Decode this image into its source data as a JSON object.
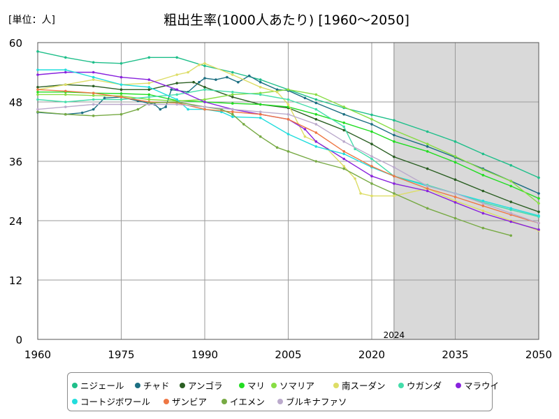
{
  "header": {
    "unit": "[単位：人]",
    "title": "粗出生率(1000人あたり) [1960〜2050]"
  },
  "chart_data": {
    "type": "line",
    "title": "粗出生率(1000人あたり) [1960〜2050]",
    "ylabel": "[単位：人]",
    "xlabel": "",
    "xlim": [
      1960,
      2050
    ],
    "ylim": [
      0,
      60
    ],
    "x_ticks": [
      1960,
      1975,
      1990,
      2005,
      2020,
      2035,
      2050
    ],
    "y_ticks": [
      0,
      12,
      24,
      36,
      48,
      60
    ],
    "grid": true,
    "legend_position": "bottom",
    "shaded_region": {
      "from": 2024,
      "to": 2050,
      "label": "2024",
      "color": "#d9d9d9"
    },
    "series": [
      {
        "name": "ニジェール",
        "color": "#1fbf8a",
        "points": [
          [
            1960,
            58.2
          ],
          [
            1965,
            57.0
          ],
          [
            1970,
            56.0
          ],
          [
            1975,
            55.8
          ],
          [
            1980,
            57.0
          ],
          [
            1985,
            57.0
          ],
          [
            1990,
            55.3
          ],
          [
            1995,
            54.0
          ],
          [
            2000,
            52.5
          ],
          [
            2005,
            50.5
          ],
          [
            2010,
            48.5
          ],
          [
            2015,
            46.8
          ],
          [
            2020,
            45.4
          ],
          [
            2024,
            44.3
          ],
          [
            2030,
            42.0
          ],
          [
            2035,
            40.0
          ],
          [
            2040,
            37.5
          ],
          [
            2045,
            35.2
          ],
          [
            2050,
            32.7
          ]
        ]
      },
      {
        "name": "チャド",
        "color": "#1c6f82",
        "points": [
          [
            1960,
            45.9
          ],
          [
            1965,
            45.5
          ],
          [
            1968,
            45.8
          ],
          [
            1970,
            46.5
          ],
          [
            1972,
            48.8
          ],
          [
            1975,
            49.0
          ],
          [
            1978,
            48.2
          ],
          [
            1981,
            47.5
          ],
          [
            1982,
            46.5
          ],
          [
            1983,
            47.0
          ],
          [
            1984,
            50.5
          ],
          [
            1987,
            50.0
          ],
          [
            1989,
            52.0
          ],
          [
            1990,
            52.8
          ],
          [
            1992,
            52.5
          ],
          [
            1994,
            53.0
          ],
          [
            1996,
            52.0
          ],
          [
            1998,
            53.3
          ],
          [
            2000,
            52.0
          ],
          [
            2003,
            50.5
          ],
          [
            2005,
            50.3
          ],
          [
            2008,
            48.8
          ],
          [
            2010,
            47.8
          ],
          [
            2015,
            45.5
          ],
          [
            2020,
            43.5
          ],
          [
            2024,
            41.3
          ],
          [
            2030,
            39.0
          ],
          [
            2035,
            36.8
          ],
          [
            2040,
            34.5
          ],
          [
            2045,
            32.0
          ],
          [
            2050,
            29.5
          ]
        ]
      },
      {
        "name": "アンゴラ",
        "color": "#2a5e22",
        "points": [
          [
            1960,
            51.0
          ],
          [
            1965,
            51.5
          ],
          [
            1970,
            51.2
          ],
          [
            1975,
            50.5
          ],
          [
            1980,
            50.5
          ],
          [
            1985,
            51.8
          ],
          [
            1988,
            52.0
          ],
          [
            1990,
            51.0
          ],
          [
            1995,
            49.0
          ],
          [
            2000,
            47.5
          ],
          [
            2005,
            46.8
          ],
          [
            2010,
            44.5
          ],
          [
            2015,
            42.3
          ],
          [
            2020,
            39.5
          ],
          [
            2024,
            36.9
          ],
          [
            2030,
            34.5
          ],
          [
            2035,
            32.3
          ],
          [
            2040,
            30.0
          ],
          [
            2045,
            27.8
          ],
          [
            2050,
            25.8
          ]
        ]
      },
      {
        "name": "マリ",
        "color": "#22dd22",
        "points": [
          [
            1960,
            50.0
          ],
          [
            1965,
            50.0
          ],
          [
            1970,
            49.8
          ],
          [
            1975,
            49.7
          ],
          [
            1980,
            49.5
          ],
          [
            1985,
            48.3
          ],
          [
            1990,
            48.0
          ],
          [
            1995,
            47.7
          ],
          [
            2000,
            47.5
          ],
          [
            2005,
            47.0
          ],
          [
            2010,
            45.5
          ],
          [
            2015,
            43.8
          ],
          [
            2020,
            42.0
          ],
          [
            2024,
            40.0
          ],
          [
            2030,
            38.0
          ],
          [
            2035,
            35.8
          ],
          [
            2040,
            33.2
          ],
          [
            2045,
            31.0
          ],
          [
            2050,
            28.5
          ]
        ]
      },
      {
        "name": "ソマリア",
        "color": "#88dd44",
        "points": [
          [
            1960,
            49.5
          ],
          [
            1965,
            49.5
          ],
          [
            1970,
            49.3
          ],
          [
            1975,
            49.2
          ],
          [
            1980,
            48.5
          ],
          [
            1985,
            48.2
          ],
          [
            1990,
            48.5
          ],
          [
            1995,
            49.5
          ],
          [
            2000,
            49.8
          ],
          [
            2005,
            50.5
          ],
          [
            2010,
            49.5
          ],
          [
            2015,
            47.0
          ],
          [
            2020,
            44.5
          ],
          [
            2024,
            42.3
          ],
          [
            2030,
            39.5
          ],
          [
            2035,
            37.0
          ],
          [
            2040,
            34.3
          ],
          [
            2045,
            32.0
          ],
          [
            2050,
            27.5
          ]
        ]
      },
      {
        "name": "南スーダン",
        "color": "#dddd66",
        "points": [
          [
            1960,
            50.5
          ],
          [
            1965,
            51.5
          ],
          [
            1970,
            52.5
          ],
          [
            1975,
            51.5
          ],
          [
            1980,
            51.8
          ],
          [
            1985,
            53.5
          ],
          [
            1987,
            54.0
          ],
          [
            1989,
            55.5
          ],
          [
            1990,
            55.8
          ],
          [
            1995,
            53.5
          ],
          [
            2000,
            51.0
          ],
          [
            2003,
            50.0
          ],
          [
            2005,
            47.5
          ],
          [
            2008,
            41.0
          ],
          [
            2010,
            40.0
          ],
          [
            2012,
            38.5
          ],
          [
            2015,
            35.0
          ],
          [
            2017,
            32.5
          ],
          [
            2018,
            29.5
          ],
          [
            2020,
            29.0
          ],
          [
            2024,
            29.0
          ],
          [
            2030,
            30.5
          ],
          [
            2035,
            28.0
          ],
          [
            2040,
            26.0
          ],
          [
            2045,
            24.0
          ],
          [
            2050,
            22.0
          ]
        ]
      },
      {
        "name": "ウガンダ",
        "color": "#44ddaa",
        "points": [
          [
            1960,
            48.5
          ],
          [
            1965,
            48.0
          ],
          [
            1970,
            48.5
          ],
          [
            1975,
            48.5
          ],
          [
            1980,
            49.0
          ],
          [
            1985,
            49.5
          ],
          [
            1990,
            50.5
          ],
          [
            1995,
            50.0
          ],
          [
            2000,
            49.5
          ],
          [
            2005,
            48.5
          ],
          [
            2010,
            46.5
          ],
          [
            2015,
            43.0
          ],
          [
            2017,
            38.5
          ],
          [
            2020,
            36.5
          ],
          [
            2024,
            33.0
          ],
          [
            2030,
            31.2
          ],
          [
            2035,
            29.5
          ],
          [
            2040,
            27.7
          ],
          [
            2045,
            26.2
          ],
          [
            2050,
            24.8
          ]
        ]
      },
      {
        "name": "マラウイ",
        "color": "#8822dd",
        "points": [
          [
            1960,
            53.5
          ],
          [
            1965,
            54.0
          ],
          [
            1970,
            54.0
          ],
          [
            1975,
            53.0
          ],
          [
            1980,
            52.5
          ],
          [
            1985,
            50.5
          ],
          [
            1990,
            48.0
          ],
          [
            1995,
            46.5
          ],
          [
            2000,
            45.5
          ],
          [
            2005,
            44.5
          ],
          [
            2008,
            42.5
          ],
          [
            2010,
            40.0
          ],
          [
            2015,
            36.5
          ],
          [
            2020,
            33.0
          ],
          [
            2024,
            31.5
          ],
          [
            2030,
            30.0
          ],
          [
            2035,
            27.7
          ],
          [
            2040,
            25.5
          ],
          [
            2045,
            23.8
          ],
          [
            2050,
            22.2
          ]
        ]
      },
      {
        "name": "コートジボワール",
        "color": "#22dddd",
        "points": [
          [
            1960,
            54.5
          ],
          [
            1965,
            54.5
          ],
          [
            1970,
            53.0
          ],
          [
            1975,
            51.5
          ],
          [
            1980,
            51.0
          ],
          [
            1985,
            48.5
          ],
          [
            1987,
            46.5
          ],
          [
            1990,
            46.5
          ],
          [
            1993,
            46.0
          ],
          [
            1995,
            45.0
          ],
          [
            2000,
            44.8
          ],
          [
            2005,
            41.5
          ],
          [
            2010,
            39.0
          ],
          [
            2015,
            37.5
          ],
          [
            2020,
            34.8
          ],
          [
            2024,
            33.0
          ],
          [
            2030,
            31.0
          ],
          [
            2035,
            29.5
          ],
          [
            2040,
            28.0
          ],
          [
            2045,
            26.5
          ],
          [
            2050,
            25.0
          ]
        ]
      },
      {
        "name": "ザンビア",
        "color": "#ee7744",
        "points": [
          [
            1960,
            50.5
          ],
          [
            1965,
            50.2
          ],
          [
            1970,
            49.8
          ],
          [
            1975,
            49.0
          ],
          [
            1980,
            48.0
          ],
          [
            1985,
            47.8
          ],
          [
            1990,
            46.5
          ],
          [
            1995,
            46.0
          ],
          [
            2000,
            45.5
          ],
          [
            2005,
            44.5
          ],
          [
            2010,
            41.8
          ],
          [
            2015,
            38.0
          ],
          [
            2020,
            35.0
          ],
          [
            2024,
            33.0
          ],
          [
            2030,
            30.5
          ],
          [
            2035,
            28.8
          ],
          [
            2040,
            27.0
          ],
          [
            2045,
            25.2
          ],
          [
            2050,
            23.5
          ]
        ]
      },
      {
        "name": "イエメン",
        "color": "#77aa44",
        "points": [
          [
            1960,
            46.0
          ],
          [
            1965,
            45.5
          ],
          [
            1970,
            45.2
          ],
          [
            1975,
            45.5
          ],
          [
            1978,
            46.5
          ],
          [
            1980,
            47.8
          ],
          [
            1985,
            48.0
          ],
          [
            1990,
            47.0
          ],
          [
            1993,
            46.5
          ],
          [
            1995,
            45.5
          ],
          [
            1997,
            43.5
          ],
          [
            2000,
            41.0
          ],
          [
            2003,
            38.8
          ],
          [
            2005,
            38.0
          ],
          [
            2010,
            36.0
          ],
          [
            2015,
            34.5
          ],
          [
            2020,
            31.5
          ],
          [
            2024,
            29.5
          ],
          [
            2030,
            26.5
          ],
          [
            2035,
            24.5
          ],
          [
            2040,
            22.5
          ],
          [
            2045,
            21.0
          ]
        ]
      },
      {
        "name": "ブルキナファソ",
        "color": "#bbaacc",
        "points": [
          [
            1960,
            46.5
          ],
          [
            1965,
            47.0
          ],
          [
            1970,
            47.5
          ],
          [
            1975,
            47.5
          ],
          [
            1980,
            47.5
          ],
          [
            1985,
            47.5
          ],
          [
            1990,
            47.0
          ],
          [
            1995,
            46.5
          ],
          [
            2000,
            46.0
          ],
          [
            2005,
            45.5
          ],
          [
            2010,
            43.5
          ],
          [
            2015,
            40.0
          ],
          [
            2020,
            37.0
          ],
          [
            2024,
            34.8
          ],
          [
            2030,
            31.0
          ],
          [
            2035,
            29.5
          ],
          [
            2040,
            27.5
          ],
          [
            2045,
            25.5
          ],
          [
            2050,
            23.5
          ]
        ]
      }
    ]
  }
}
